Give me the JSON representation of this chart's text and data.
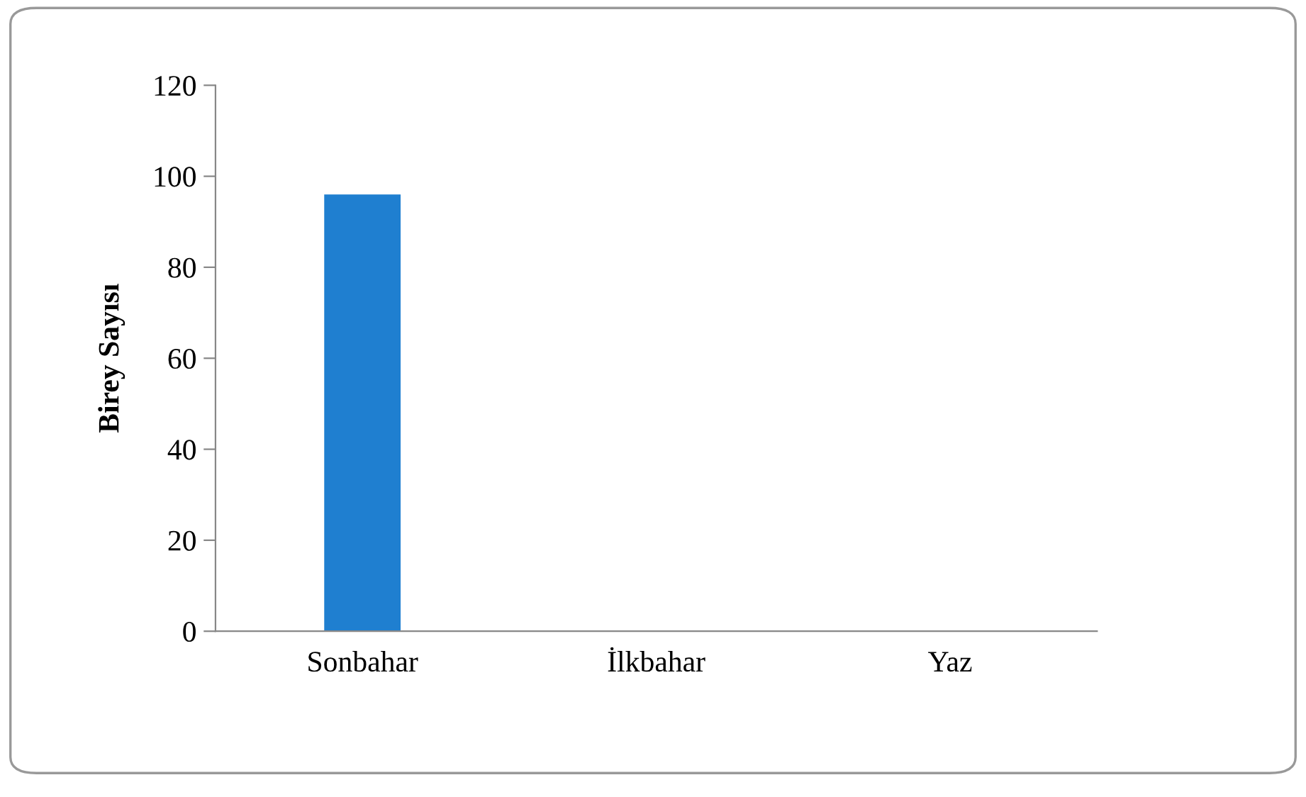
{
  "chart_data": {
    "type": "bar",
    "ylabel": "Birey Sayısı",
    "categories": [
      "Sonbahar",
      "İlkbahar",
      "Yaz"
    ],
    "values": [
      96,
      0,
      0
    ],
    "color": "#1f7fd0",
    "ylim": [
      0,
      120
    ],
    "yticks": [
      0,
      20,
      40,
      60,
      80,
      100,
      120
    ]
  }
}
